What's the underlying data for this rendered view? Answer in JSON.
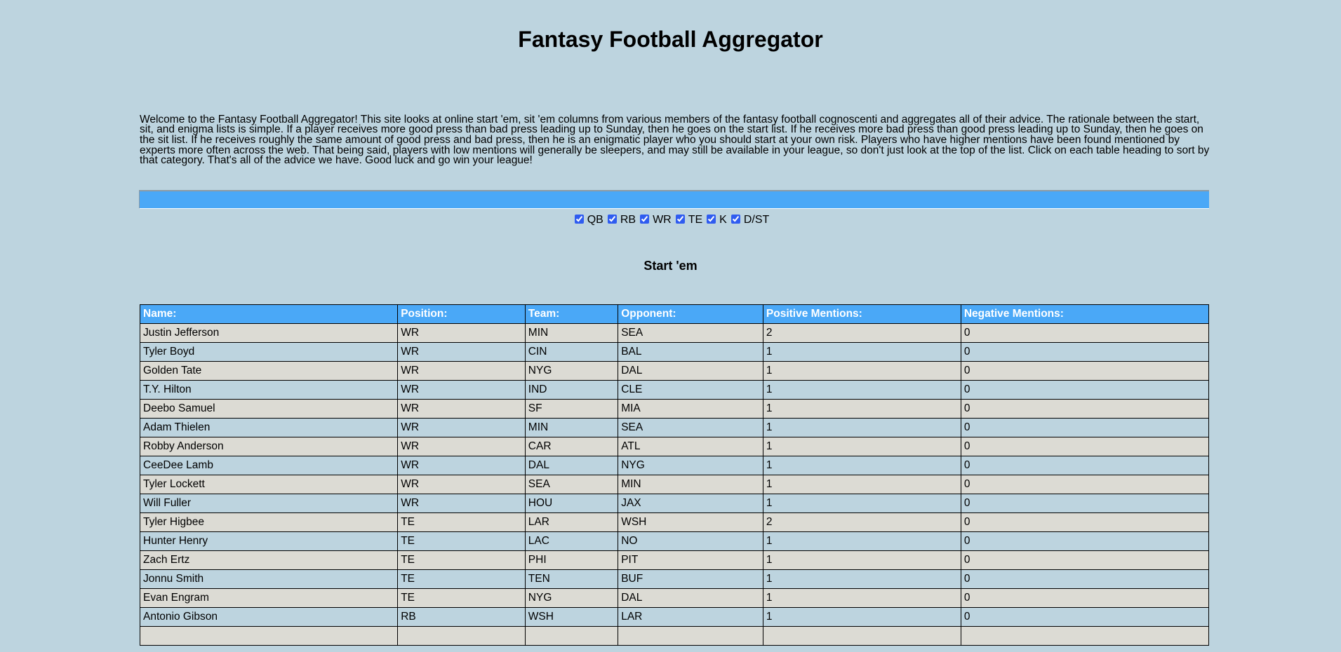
{
  "title": "Fantasy Football Aggregator",
  "intro": "Welcome to the Fantasy Football Aggregator! This site looks at online start 'em, sit 'em columns from various members of the fantasy football cognoscenti and aggregates all of their advice. The rationale between the start, sit, and enigma lists is simple. If a player receives more good press than bad press leading up to Sunday, then he goes on the start list. If he receives more bad press than good press leading up to Sunday, then he goes on the sit list. If he receives roughly the same amount of good press and bad press, then he is an enigmatic player who you should start at your own risk. Players who have higher mentions have been found mentioned by experts more often across the web. That being said, players with low mentions will generally be sleepers, and may still be available in your league, so don't just look at the top of the list. Click on each table heading to sort by that category. That's all of the advice we have. Good luck and go win your league!",
  "filters": [
    {
      "label": "QB",
      "checked": true
    },
    {
      "label": "RB",
      "checked": true
    },
    {
      "label": "WR",
      "checked": true
    },
    {
      "label": "TE",
      "checked": true
    },
    {
      "label": "K",
      "checked": true
    },
    {
      "label": "D/ST",
      "checked": true
    }
  ],
  "section_title": "Start 'em",
  "table": {
    "headers": [
      "Name:",
      "Position:",
      "Team:",
      "Opponent:",
      "Positive Mentions:",
      "Negative Mentions:"
    ],
    "rows": [
      [
        "Justin Jefferson",
        "WR",
        "MIN",
        "SEA",
        "2",
        "0"
      ],
      [
        "Tyler Boyd",
        "WR",
        "CIN",
        "BAL",
        "1",
        "0"
      ],
      [
        "Golden Tate",
        "WR",
        "NYG",
        "DAL",
        "1",
        "0"
      ],
      [
        "T.Y. Hilton",
        "WR",
        "IND",
        "CLE",
        "1",
        "0"
      ],
      [
        "Deebo Samuel",
        "WR",
        "SF",
        "MIA",
        "1",
        "0"
      ],
      [
        "Adam Thielen",
        "WR",
        "MIN",
        "SEA",
        "1",
        "0"
      ],
      [
        "Robby Anderson",
        "WR",
        "CAR",
        "ATL",
        "1",
        "0"
      ],
      [
        "CeeDee Lamb",
        "WR",
        "DAL",
        "NYG",
        "1",
        "0"
      ],
      [
        "Tyler Lockett",
        "WR",
        "SEA",
        "MIN",
        "1",
        "0"
      ],
      [
        "Will Fuller",
        "WR",
        "HOU",
        "JAX",
        "1",
        "0"
      ],
      [
        "Tyler Higbee",
        "TE",
        "LAR",
        "WSH",
        "2",
        "0"
      ],
      [
        "Hunter Henry",
        "TE",
        "LAC",
        "NO",
        "1",
        "0"
      ],
      [
        "Zach Ertz",
        "TE",
        "PHI",
        "PIT",
        "1",
        "0"
      ],
      [
        "Jonnu Smith",
        "TE",
        "TEN",
        "BUF",
        "1",
        "0"
      ],
      [
        "Evan Engram",
        "TE",
        "NYG",
        "DAL",
        "1",
        "0"
      ],
      [
        "Antonio Gibson",
        "RB",
        "WSH",
        "LAR",
        "1",
        "0"
      ]
    ]
  },
  "colors": {
    "background": "#bdd4df",
    "accent": "#4aa8f7",
    "row_alt": "#dcdbd4"
  }
}
